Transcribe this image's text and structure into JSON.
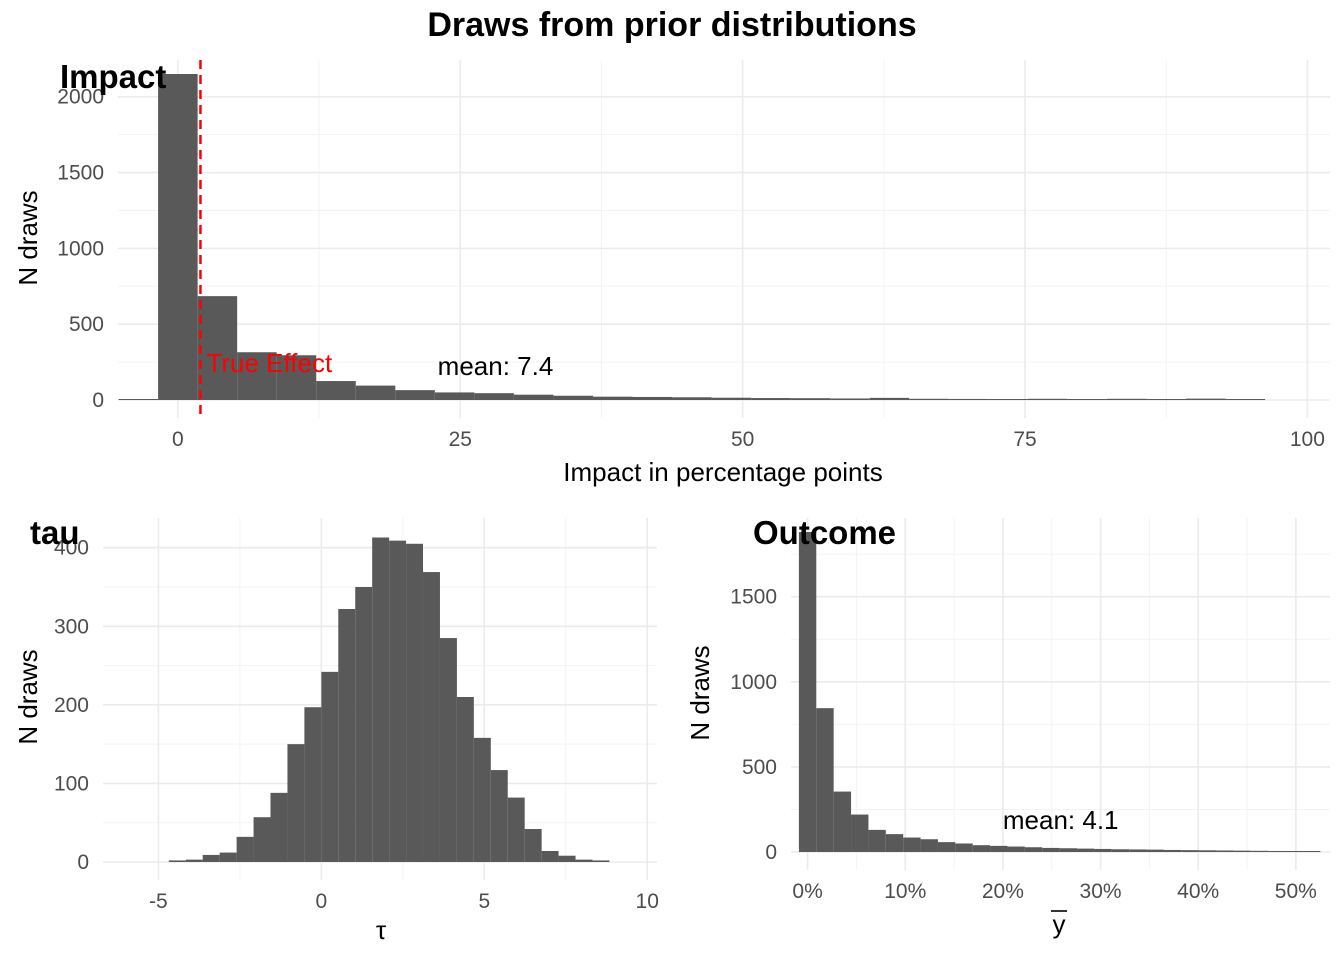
{
  "title": "Draws from prior distributions",
  "colors": {
    "bar": "#595959",
    "vline": "#ff0000",
    "grid": "#ebebeb",
    "tick_text": "#4d4d4d"
  },
  "chart_data": [
    {
      "tag": "Impact",
      "type": "bar",
      "xlabel": "Impact in percentage points",
      "ylabel": "N draws",
      "xlim": [
        -5.3,
        102
      ],
      "ylim": [
        0,
        2150
      ],
      "xticks": [
        0,
        25,
        50,
        75,
        100
      ],
      "yticks": [
        0,
        500,
        1000,
        1500,
        2000
      ],
      "bin_width": 3.5,
      "bin_centers": [
        -3.5,
        0,
        3.5,
        7,
        10.5,
        14,
        17.5,
        21,
        24.5,
        28,
        31.5,
        35,
        38.5,
        42,
        45.5,
        49,
        52.5,
        56,
        59.5,
        63,
        66.5,
        70,
        73.5,
        77,
        80.5,
        84,
        87.5,
        91,
        94.5
      ],
      "counts": [
        3,
        2150,
        685,
        315,
        295,
        125,
        95,
        65,
        50,
        45,
        35,
        28,
        22,
        20,
        18,
        15,
        13,
        12,
        10,
        14,
        8,
        7,
        6,
        8,
        5,
        8,
        4,
        9,
        4
      ],
      "vline": {
        "x": 2,
        "label": "True Effect"
      },
      "annotation": {
        "text": "mean: 7.4",
        "x": 23,
        "y": 165
      }
    },
    {
      "tag": "tau",
      "type": "bar",
      "xlabel": "τ",
      "ylabel": "N draws",
      "xlim": [
        -6.7,
        10.3
      ],
      "ylim": [
        0,
        420
      ],
      "xticks": [
        -5,
        0,
        5,
        10
      ],
      "xtick_labels": [
        "-5",
        "0",
        "5",
        "10"
      ],
      "yticks": [
        0,
        100,
        200,
        300,
        400
      ],
      "bin_width": 0.52,
      "bin_centers": [
        -4.42,
        -3.9,
        -3.38,
        -2.86,
        -2.34,
        -1.82,
        -1.3,
        -0.78,
        -0.26,
        0.26,
        0.78,
        1.3,
        1.82,
        2.34,
        2.86,
        3.38,
        3.9,
        4.42,
        4.94,
        5.46,
        5.98,
        6.5,
        7.02,
        7.54,
        8.06,
        8.58
      ],
      "counts": [
        2,
        3,
        9,
        12,
        32,
        57,
        88,
        150,
        197,
        242,
        322,
        350,
        413,
        409,
        405,
        369,
        285,
        210,
        158,
        117,
        82,
        42,
        14,
        8,
        3,
        2
      ]
    },
    {
      "tag": "Outcome",
      "type": "bar",
      "xlabel": "y",
      "ylabel": "N draws",
      "xlim": [
        -0.017,
        0.535
      ],
      "ylim": [
        0,
        1880
      ],
      "xticks": [
        0,
        0.1,
        0.2,
        0.3,
        0.4,
        0.5
      ],
      "xtick_labels": [
        "0%",
        "10%",
        "20%",
        "30%",
        "40%",
        "50%"
      ],
      "yticks": [
        0,
        500,
        1000,
        1500
      ],
      "bin_width": 0.0178,
      "bin_centers": [
        0.0,
        0.0178,
        0.0356,
        0.0534,
        0.0712,
        0.089,
        0.1068,
        0.1246,
        0.1424,
        0.1602,
        0.178,
        0.1958,
        0.2136,
        0.2314,
        0.2492,
        0.267,
        0.2848,
        0.3026,
        0.3204,
        0.3382,
        0.356,
        0.3738,
        0.3916,
        0.4094,
        0.4272,
        0.445,
        0.4628,
        0.4806,
        0.4984,
        0.5162
      ],
      "counts": [
        1880,
        845,
        355,
        220,
        130,
        105,
        85,
        75,
        58,
        50,
        40,
        36,
        32,
        28,
        24,
        22,
        20,
        18,
        16,
        15,
        14,
        12,
        11,
        10,
        9,
        8,
        7,
        6,
        5,
        4
      ],
      "annotation": {
        "text": "mean: 4.1",
        "x": 0.2,
        "y": 135
      }
    }
  ]
}
